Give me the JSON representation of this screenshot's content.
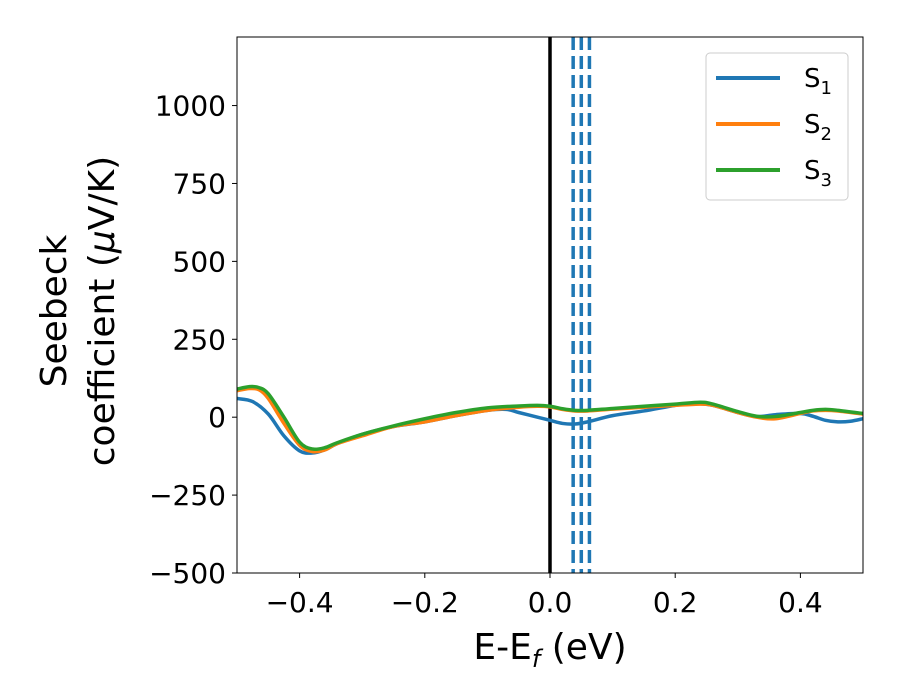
{
  "chart_data": {
    "type": "line",
    "title": "",
    "xlabel": "E-E",
    "xlabel_sub": "f",
    "xlabel_unit": " (eV)",
    "ylabel_line1": "Seebeck",
    "ylabel_line2_pre": "coefficient  (",
    "ylabel_mu": "μ",
    "ylabel_line2_post": "V/K)",
    "xlim": [
      -0.5,
      0.5
    ],
    "ylim": [
      -500,
      1220
    ],
    "xticks": [
      -0.4,
      -0.2,
      0.0,
      0.2,
      0.4
    ],
    "xtick_labels": [
      "−0.4",
      "−0.2",
      "0.0",
      "0.2",
      "0.4"
    ],
    "yticks": [
      -500,
      -250,
      0,
      250,
      500,
      750,
      1000
    ],
    "ytick_labels": [
      "−500",
      "−250",
      "0",
      "250",
      "500",
      "750",
      "1000"
    ],
    "grid": false,
    "legend_position": "top-right",
    "series": [
      {
        "name": "S",
        "sub": "1",
        "color": "#1f77b4",
        "x": [
          -0.5,
          -0.475,
          -0.45,
          -0.425,
          -0.4,
          -0.38,
          -0.36,
          -0.34,
          -0.3,
          -0.25,
          -0.2,
          -0.15,
          -0.1,
          -0.07,
          -0.05,
          -0.02,
          0.0,
          0.02,
          0.04,
          0.06,
          0.1,
          0.15,
          0.2,
          0.23,
          0.26,
          0.3,
          0.33,
          0.36,
          0.4,
          0.42,
          0.44,
          0.46,
          0.48,
          0.5
        ],
        "y": [
          60,
          50,
          10,
          -60,
          -108,
          -115,
          -105,
          -85,
          -55,
          -30,
          -15,
          5,
          22,
          25,
          15,
          0,
          -10,
          -20,
          -22,
          -15,
          5,
          20,
          38,
          44,
          38,
          15,
          2,
          8,
          12,
          3,
          -10,
          -15,
          -13,
          -5
        ]
      },
      {
        "name": "S",
        "sub": "2",
        "color": "#ff7f0e",
        "x": [
          -0.5,
          -0.48,
          -0.465,
          -0.45,
          -0.425,
          -0.4,
          -0.38,
          -0.36,
          -0.34,
          -0.3,
          -0.25,
          -0.2,
          -0.15,
          -0.1,
          -0.05,
          -0.02,
          0.0,
          0.02,
          0.04,
          0.06,
          0.1,
          0.15,
          0.2,
          0.24,
          0.26,
          0.3,
          0.33,
          0.36,
          0.4,
          0.42,
          0.44,
          0.46,
          0.5
        ],
        "y": [
          85,
          92,
          88,
          60,
          -20,
          -90,
          -110,
          -105,
          -85,
          -60,
          -30,
          -15,
          5,
          22,
          32,
          35,
          33,
          25,
          20,
          20,
          26,
          32,
          38,
          42,
          38,
          15,
          0,
          -5,
          12,
          20,
          22,
          20,
          10
        ]
      },
      {
        "name": "S",
        "sub": "3",
        "color": "#2ca02c",
        "x": [
          -0.5,
          -0.48,
          -0.465,
          -0.45,
          -0.425,
          -0.4,
          -0.38,
          -0.36,
          -0.34,
          -0.3,
          -0.25,
          -0.2,
          -0.15,
          -0.1,
          -0.05,
          -0.02,
          0.0,
          0.02,
          0.04,
          0.06,
          0.1,
          0.15,
          0.2,
          0.24,
          0.26,
          0.3,
          0.33,
          0.36,
          0.4,
          0.42,
          0.44,
          0.46,
          0.5
        ],
        "y": [
          90,
          98,
          95,
          75,
          0,
          -80,
          -102,
          -98,
          -82,
          -55,
          -28,
          -5,
          15,
          30,
          36,
          38,
          35,
          27,
          22,
          22,
          28,
          35,
          42,
          48,
          42,
          18,
          3,
          2,
          15,
          22,
          25,
          22,
          12
        ]
      }
    ],
    "reference_lines": [
      {
        "x": 0.0,
        "color": "#000000",
        "style": "solid"
      },
      {
        "x": 0.037,
        "color": "#1f77b4",
        "style": "dashed"
      },
      {
        "x": 0.05,
        "color": "#1f77b4",
        "style": "dashed"
      },
      {
        "x": 0.063,
        "color": "#1f77b4",
        "style": "dashed"
      }
    ]
  }
}
